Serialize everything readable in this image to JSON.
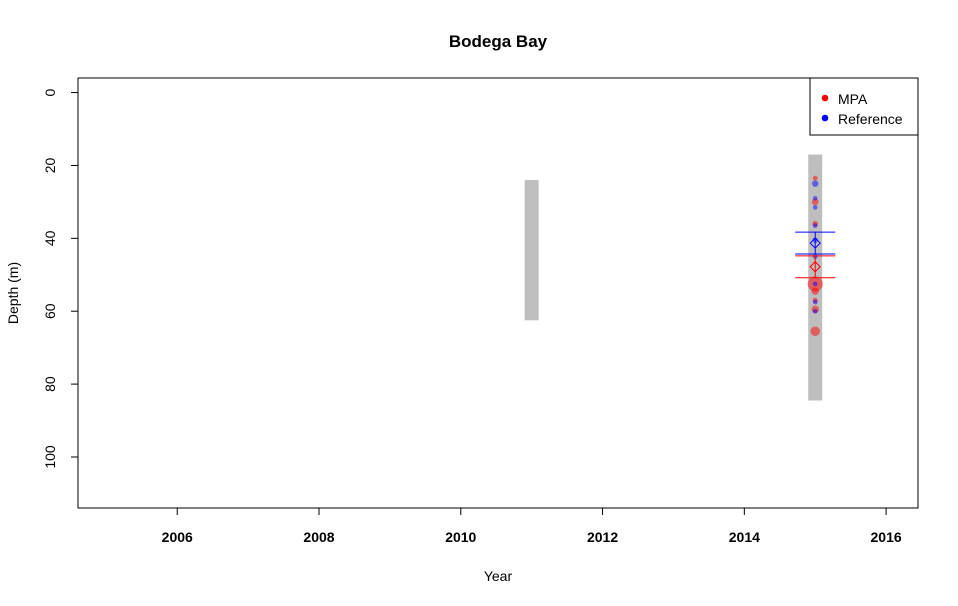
{
  "chart_data": {
    "type": "scatter",
    "title": "Bodega Bay",
    "xlabel": "Year",
    "ylabel": "Depth (m)",
    "xlim": [
      2004.6,
      2016.45
    ],
    "ylim": [
      114,
      -4
    ],
    "y_reversed": true,
    "x_ticks": [
      2006,
      2008,
      2010,
      2012,
      2014,
      2016
    ],
    "x_tick_labels": [
      "2006",
      "2008",
      "2010",
      "2012",
      "2014",
      "2016"
    ],
    "y_ticks": [
      0,
      20,
      40,
      60,
      80,
      100
    ],
    "y_tick_labels": [
      "0",
      "20",
      "40",
      "60",
      "80",
      "100"
    ],
    "grid": false,
    "legend": {
      "position": "top-right",
      "entries": [
        {
          "label": "MPA",
          "color": "#ff0000"
        },
        {
          "label": "Reference",
          "color": "#0000ff"
        }
      ]
    },
    "depth_ranges": [
      {
        "year": 2011,
        "min": 24,
        "max": 62.5,
        "color": "#bebebe"
      },
      {
        "year": 2015,
        "min": 17,
        "max": 84.5,
        "color": "#bebebe"
      }
    ],
    "series": [
      {
        "name": "MPA",
        "color": "#ff0000",
        "points": [
          {
            "year": 2015,
            "depth": 23.5,
            "weight": 0.4
          },
          {
            "year": 2015,
            "depth": 30,
            "weight": 1.2
          },
          {
            "year": 2015,
            "depth": 36,
            "weight": 0.7
          },
          {
            "year": 2015,
            "depth": 52.5,
            "weight": 10
          },
          {
            "year": 2015,
            "depth": 54.5,
            "weight": 1.5
          },
          {
            "year": 2015,
            "depth": 57,
            "weight": 0.5
          },
          {
            "year": 2015,
            "depth": 59.5,
            "weight": 1.6
          },
          {
            "year": 2015,
            "depth": 65.5,
            "weight": 3.2
          }
        ],
        "mean": {
          "year": 2015,
          "depth": 47.8
        },
        "error_bar": [
          44.8,
          50.8
        ]
      },
      {
        "name": "Reference",
        "color": "#0000ff",
        "points": [
          {
            "year": 2015,
            "depth": 25,
            "weight": 1.0
          },
          {
            "year": 2015,
            "depth": 29,
            "weight": 0.3
          },
          {
            "year": 2015,
            "depth": 31.5,
            "weight": 0.3
          },
          {
            "year": 2015,
            "depth": 36.5,
            "weight": 0.3
          },
          {
            "year": 2015,
            "depth": 40.5,
            "weight": 0.6
          },
          {
            "year": 2015,
            "depth": 45,
            "weight": 0.4
          },
          {
            "year": 2015,
            "depth": 52.5,
            "weight": 0.3
          },
          {
            "year": 2015,
            "depth": 57.5,
            "weight": 0.3
          },
          {
            "year": 2015,
            "depth": 60,
            "weight": 0.3
          }
        ],
        "mean": {
          "year": 2015,
          "depth": 41.3
        },
        "error_bar": [
          38.3,
          44.3
        ]
      }
    ]
  }
}
